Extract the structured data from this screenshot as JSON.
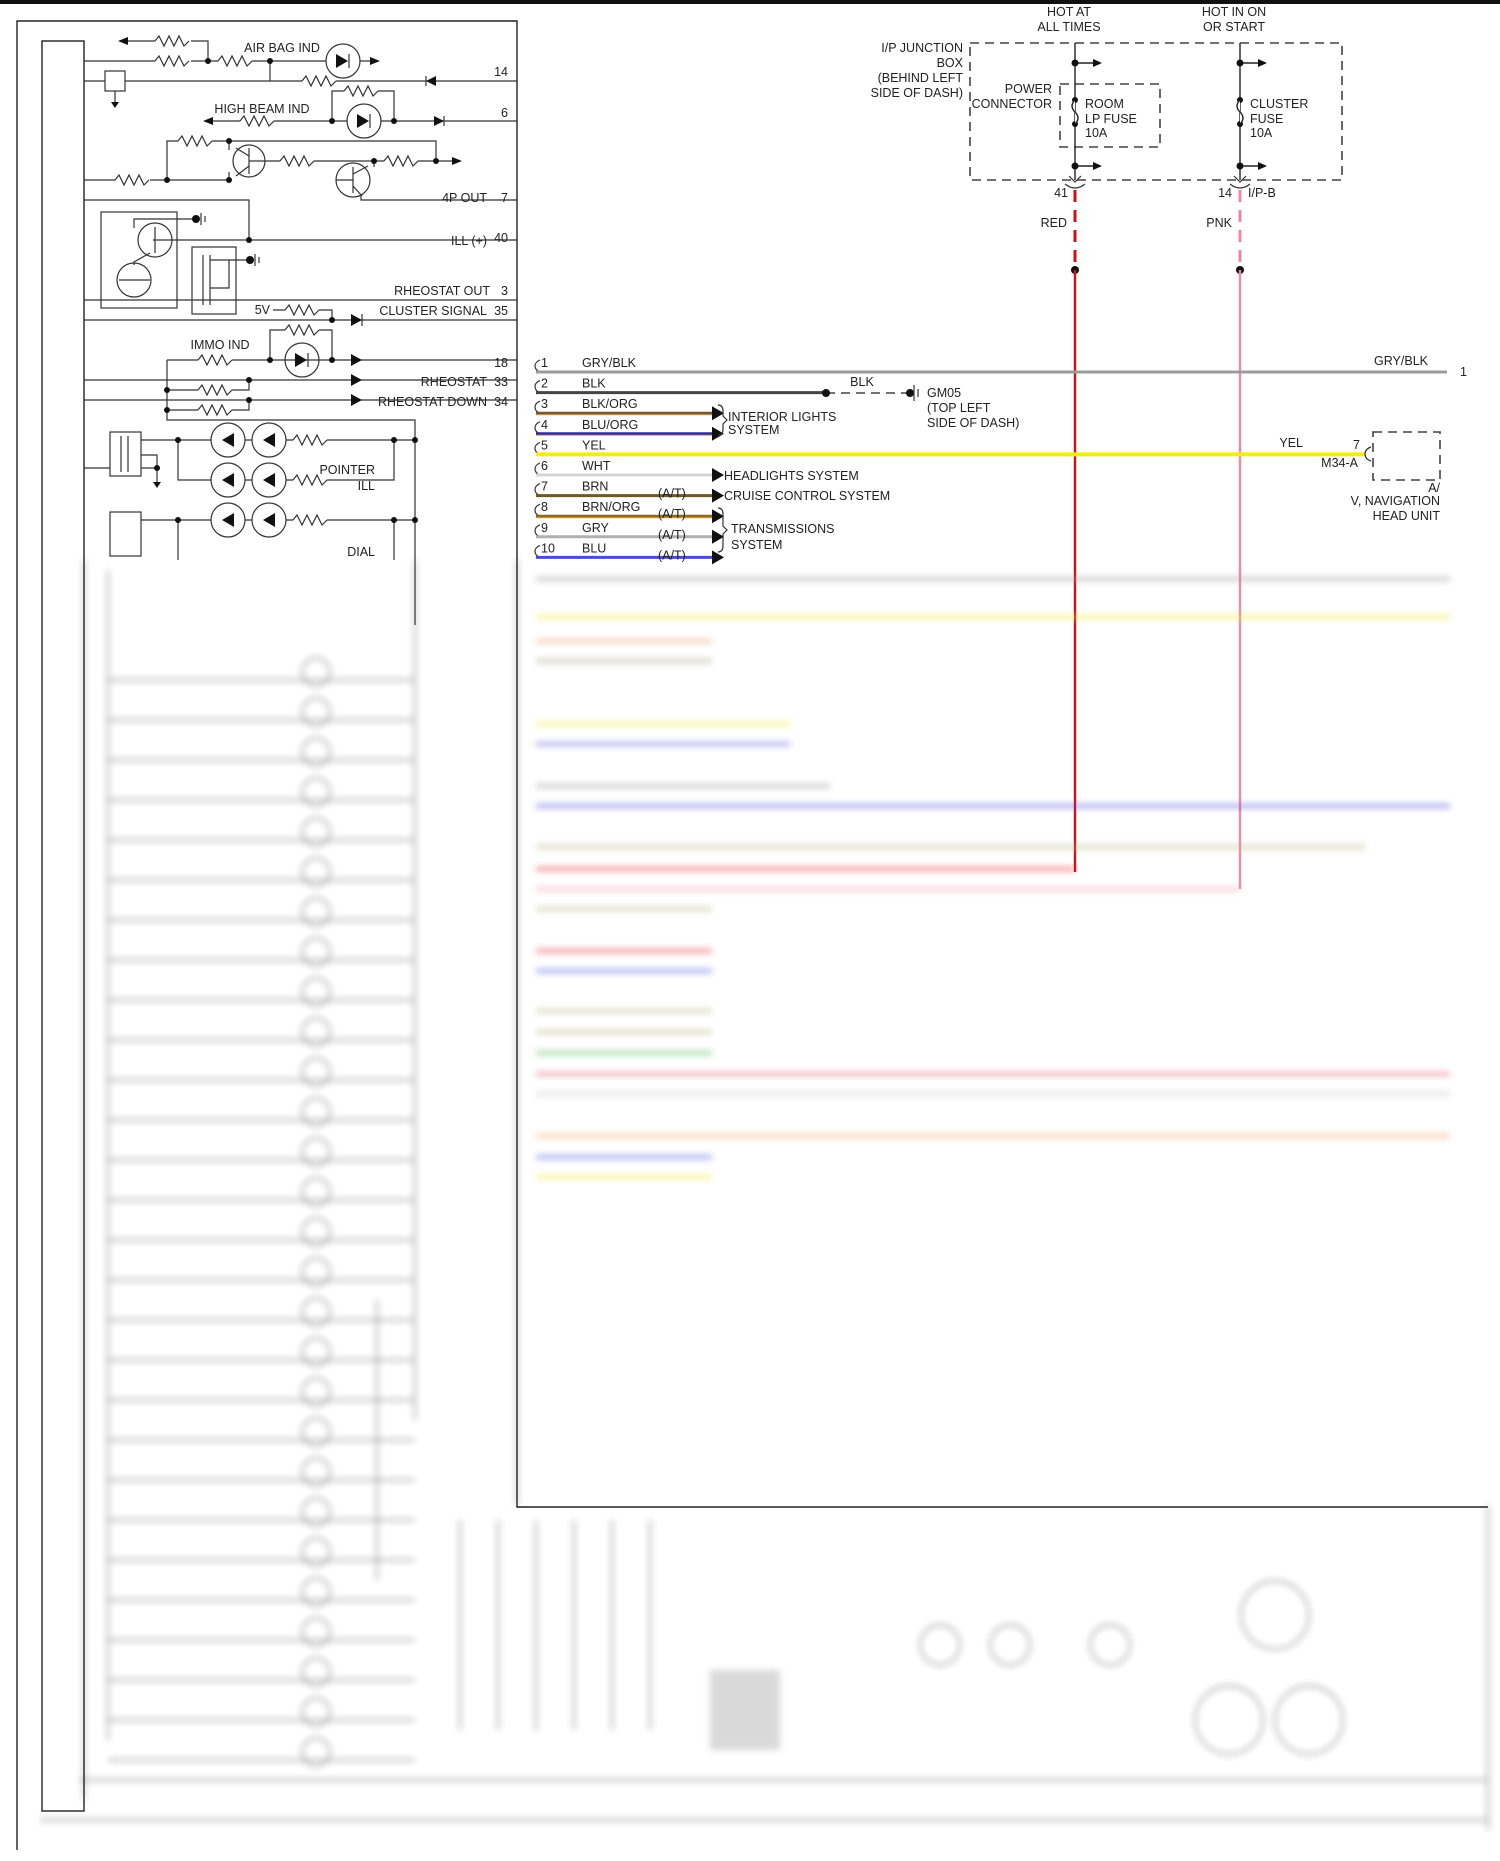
{
  "cluster": {
    "labels": {
      "air_bag": "AIR BAG IND",
      "high_beam": "HIGH BEAM IND",
      "p4_out": "4P OUT",
      "ill": "ILL (+)",
      "rheostat_out": "RHEOSTAT OUT",
      "cluster_signal": "CLUSTER SIGNAL",
      "v5": "5V",
      "immo": "IMMO IND",
      "rheostat": "RHEOSTAT",
      "rheostat_down": "RHEOSTAT DOWN",
      "pointer": "POINTER",
      "pointer_ill": "ILL",
      "dial": "DIAL"
    },
    "pins": {
      "p14": "14",
      "p6": "6",
      "p7": "7",
      "p40": "40",
      "p3": "3",
      "p35": "35",
      "p18": "18",
      "p33": "33",
      "p34": "34"
    }
  },
  "power": {
    "hot_all_1": "HOT AT",
    "hot_all_2": "ALL TIMES",
    "hot_on_1": "HOT IN ON",
    "hot_on_2": "OR START",
    "jbox": [
      "I/P JUNCTION",
      "BOX",
      "(BEHIND LEFT",
      "SIDE OF DASH)"
    ],
    "power_conn": [
      "POWER",
      "CONNECTOR"
    ],
    "room_fuse": [
      "ROOM",
      "LP FUSE",
      "10A"
    ],
    "cluster_fuse": [
      "CLUSTER",
      "FUSE",
      "10A"
    ],
    "pin41": "41",
    "pin14": "14",
    "connector": "I/P-B",
    "red": "RED",
    "pnk": "PNK"
  },
  "wires": [
    {
      "num": "1",
      "color_name": "GRY/BLK",
      "color": "#9b9b9b",
      "at": ""
    },
    {
      "num": "2",
      "color_name": "BLK",
      "color": "#444444",
      "at": ""
    },
    {
      "num": "3",
      "color_name": "BLK/ORG",
      "color": "#6e5a38",
      "at": ""
    },
    {
      "num": "4",
      "color_name": "BLU/ORG",
      "color": "#2e2aa0",
      "at": ""
    },
    {
      "num": "5",
      "color_name": "YEL",
      "color": "#f4ee10",
      "at": ""
    },
    {
      "num": "6",
      "color_name": "WHT",
      "color": "#d4d4d4",
      "at": ""
    },
    {
      "num": "7",
      "color_name": "BRN",
      "color": "#6a5a20",
      "at": "(A/T)"
    },
    {
      "num": "8",
      "color_name": "BRN/ORG",
      "color": "#8b6a22",
      "at": "(A/T)"
    },
    {
      "num": "9",
      "color_name": "GRY",
      "color": "#b0b0b0",
      "at": "(A/T)"
    },
    {
      "num": "10",
      "color_name": "BLU",
      "color": "#4a4ad6",
      "at": "(A/T)"
    }
  ],
  "right": {
    "gryblk": "GRY/BLK",
    "pin1": "1",
    "blk": "BLK",
    "gm05": [
      "GM05",
      "(TOP LEFT",
      "SIDE OF DASH)"
    ],
    "interior": [
      "INTERIOR LIGHTS",
      "SYSTEM"
    ],
    "yel": "YEL",
    "pin7": "7",
    "m34": "M34-A",
    "nav": [
      "A/",
      "V, NAVIGATION",
      "HEAD UNIT"
    ],
    "headlights": "HEADLIGHTS SYSTEM",
    "cruise": "CRUISE CONTROL SYSTEM",
    "trans": [
      "TRANSMISSIONS",
      "SYSTEM"
    ]
  },
  "colors": {
    "red_wire": "#d01010",
    "pink_wire": "#ee8aa4"
  }
}
